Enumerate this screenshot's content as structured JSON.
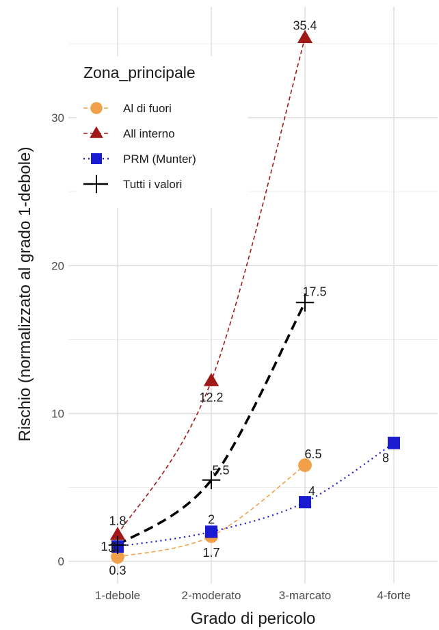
{
  "chart_data": {
    "type": "line",
    "xlabel": "Grado di pericolo",
    "ylabel": "Rischio (normalizzato al grado 1-debole)",
    "categories": [
      "1-debole",
      "2-moderato",
      "3-marcato",
      "4-forte"
    ],
    "ylim": [
      -1.5,
      37.5
    ],
    "yticks": [
      0,
      10,
      20,
      30
    ],
    "grid": true,
    "legend": {
      "title": "Zona_principale",
      "position": "top-left"
    },
    "series": [
      {
        "name": "Al di fuori",
        "color": "#f0a048",
        "marker": "circle",
        "line": "dashed-thin",
        "values": [
          0.3,
          1.7,
          6.5,
          null
        ],
        "labels": [
          "0.3",
          "1.7",
          "6.5",
          ""
        ]
      },
      {
        "name": "All interno",
        "color": "#a01818",
        "marker": "triangle",
        "line": "dashed-thin",
        "values": [
          1.8,
          12.2,
          35.4,
          null
        ],
        "labels": [
          "1.8",
          "12.2",
          "35.4",
          ""
        ]
      },
      {
        "name": "PRM (Munter)",
        "color": "#1a1ad0",
        "marker": "square",
        "line": "dotted",
        "values": [
          1,
          2,
          4,
          8
        ],
        "labels": [
          "1",
          "2",
          "4",
          "8"
        ]
      },
      {
        "name": "Tutti i valori",
        "color": "#000000",
        "marker": "plus",
        "line": "dashed-thick",
        "values": [
          1.1,
          5.5,
          17.5,
          null
        ],
        "labels": [
          "1.1",
          "5.5",
          "17.5",
          ""
        ]
      }
    ]
  }
}
